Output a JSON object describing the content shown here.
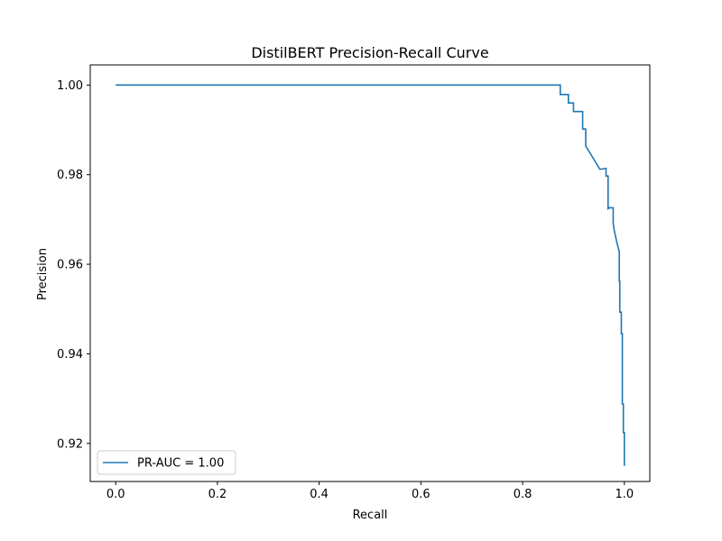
{
  "chart_data": {
    "type": "line",
    "title": "DistilBERT Precision-Recall Curve",
    "xlabel": "Recall",
    "ylabel": "Precision",
    "xlim": [
      -0.05,
      1.05
    ],
    "ylim": [
      0.9115,
      1.0045
    ],
    "x_ticks": [
      0.0,
      0.2,
      0.4,
      0.6,
      0.8,
      1.0
    ],
    "x_tick_labels": [
      "0.0",
      "0.2",
      "0.4",
      "0.6",
      "0.8",
      "1.0"
    ],
    "y_ticks": [
      0.92,
      0.94,
      0.96,
      0.98,
      1.0
    ],
    "y_tick_labels": [
      "0.92",
      "0.94",
      "0.96",
      "0.98",
      "1.00"
    ],
    "grid": false,
    "legend_position": "lower-left",
    "series_color": "#1f77b4",
    "series": [
      {
        "name": "PR-AUC = 1.00",
        "x": [
          0.0,
          0.874,
          0.874,
          0.89,
          0.89,
          0.9,
          0.9,
          0.91,
          0.91,
          0.918,
          0.918,
          0.924,
          0.924,
          0.952,
          0.964,
          0.964,
          0.968,
          0.968,
          0.97,
          0.97,
          0.978,
          0.978,
          0.98,
          0.98,
          0.986,
          0.986,
          0.99,
          0.99,
          0.991,
          0.991,
          0.994,
          0.994,
          0.996,
          0.996,
          0.998,
          0.998,
          1.0,
          1.0
        ],
        "y": [
          1.0,
          1.0,
          0.9979,
          0.9979,
          0.996,
          0.996,
          0.9941,
          0.9941,
          0.9941,
          0.9941,
          0.9902,
          0.9902,
          0.9864,
          0.9812,
          0.9814,
          0.9797,
          0.9797,
          0.9724,
          0.9726,
          0.9726,
          0.9726,
          0.9693,
          0.9676,
          0.9676,
          0.9645,
          0.9645,
          0.9628,
          0.9562,
          0.9562,
          0.9493,
          0.9493,
          0.9445,
          0.9445,
          0.9288,
          0.9288,
          0.9224,
          0.9224,
          0.915
        ]
      }
    ]
  }
}
